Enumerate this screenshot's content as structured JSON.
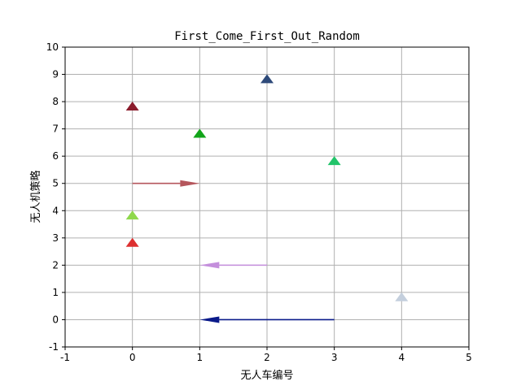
{
  "chart_data": {
    "type": "scatter",
    "title": "First_Come_First_Out_Random",
    "xlabel": "无人车编号",
    "ylabel": "无人机策略",
    "xlim": [
      -1,
      5
    ],
    "ylim": [
      -1,
      10
    ],
    "xticks": [
      "-1",
      "0",
      "1",
      "2",
      "3",
      "4",
      "5"
    ],
    "yticks": [
      "-1",
      "0",
      "1",
      "2",
      "3",
      "4",
      "5",
      "6",
      "7",
      "8",
      "9",
      "10"
    ],
    "grid": true,
    "points": [
      {
        "x": 2,
        "y": 8.8,
        "color": "#2e4a7a"
      },
      {
        "x": 0,
        "y": 7.8,
        "color": "#8b1c2c"
      },
      {
        "x": 1,
        "y": 6.8,
        "color": "#12a51a"
      },
      {
        "x": 3,
        "y": 5.8,
        "color": "#22c46a"
      },
      {
        "x": 0,
        "y": 3.8,
        "color": "#8fd84c"
      },
      {
        "x": 0,
        "y": 2.8,
        "color": "#dd3030"
      },
      {
        "x": 4,
        "y": 0.8,
        "color": "#c4cfdd"
      }
    ],
    "arrows": [
      {
        "x_start": 0,
        "y_start": 5,
        "x_end": 1,
        "y_end": 5,
        "color": "#b5565c"
      },
      {
        "x_start": 2,
        "y_start": 2,
        "x_end": 1,
        "y_end": 2,
        "color": "#c48fdc"
      },
      {
        "x_start": 3,
        "y_start": 0,
        "x_end": 1,
        "y_end": 0,
        "color": "#0a1a8a"
      }
    ]
  }
}
